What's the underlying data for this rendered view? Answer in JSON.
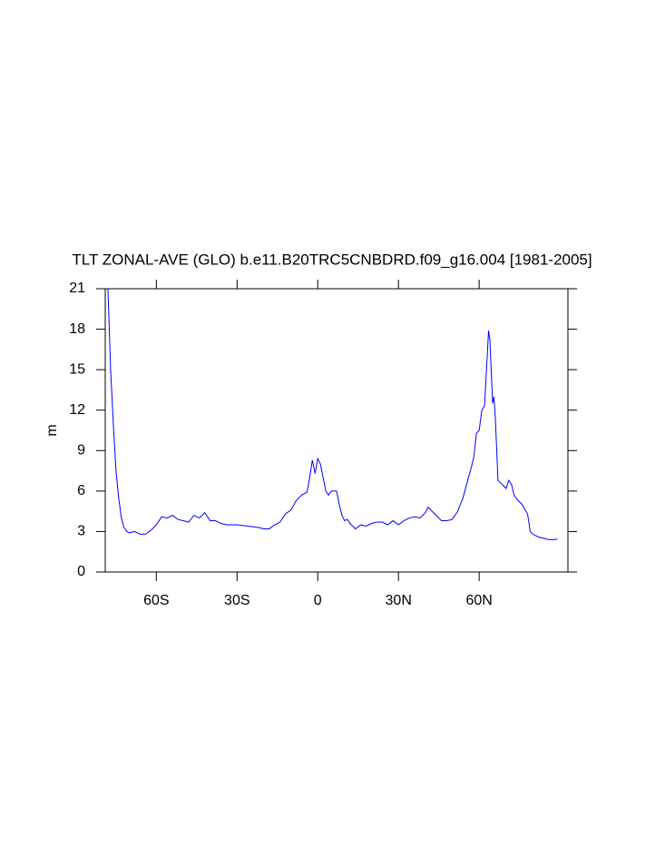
{
  "chart_data": {
    "type": "line",
    "title": "TLT ZONAL-AVE (GLO) b.e11.B20TRC5CNBDRD.f09_g16.004 [1981-2005]",
    "y_label": "m",
    "x": [
      -78,
      -77,
      -76,
      -75,
      -74,
      -73,
      -72,
      -71,
      -70,
      -68,
      -66,
      -64,
      -62,
      -60,
      -58,
      -56,
      -54,
      -52,
      -50,
      -48,
      -46,
      -44,
      -42,
      -40,
      -38,
      -36,
      -34,
      -30,
      -26,
      -22,
      -20,
      -18,
      -16,
      -14,
      -12,
      -10,
      -8,
      -6,
      -4,
      -3,
      -2,
      -1,
      0,
      1,
      2,
      3,
      4,
      5,
      7,
      8,
      9,
      10,
      11,
      12,
      14,
      16,
      18,
      20,
      22,
      24,
      26,
      28,
      30,
      32,
      34,
      36,
      38,
      40,
      41,
      42,
      44,
      46,
      48,
      50,
      52,
      54,
      56,
      57,
      58,
      59,
      60,
      61,
      62,
      63,
      63.5,
      64,
      65,
      65.5,
      66,
      67,
      68,
      69,
      70,
      71,
      72,
      73,
      74,
      76,
      78,
      79,
      80,
      82,
      84,
      86,
      88,
      89
    ],
    "series": [
      {
        "name": "TLT",
        "color": "#0000ff",
        "values": [
          21,
          15,
          11,
          7.5,
          5.5,
          4,
          3.3,
          3.0,
          2.9,
          3.0,
          2.8,
          2.8,
          3.1,
          3.5,
          4.1,
          4.0,
          4.2,
          3.9,
          3.8,
          3.7,
          4.2,
          4.0,
          4.4,
          3.8,
          3.8,
          3.6,
          3.5,
          3.5,
          3.4,
          3.3,
          3.2,
          3.2,
          3.5,
          3.7,
          4.3,
          4.6,
          5.3,
          5.7,
          5.9,
          7.0,
          8.3,
          7.3,
          8.4,
          8.0,
          7.0,
          6.0,
          5.7,
          6.0,
          6.0,
          5.0,
          4.2,
          3.8,
          3.9,
          3.6,
          3.2,
          3.5,
          3.4,
          3.6,
          3.7,
          3.7,
          3.5,
          3.8,
          3.5,
          3.8,
          4.0,
          4.1,
          4.0,
          4.4,
          4.8,
          4.6,
          4.2,
          3.8,
          3.8,
          3.9,
          4.5,
          5.5,
          7.0,
          7.7,
          8.5,
          10.3,
          10.5,
          12.0,
          12.3,
          16.0,
          17.9,
          17.2,
          12.5,
          13.0,
          11.5,
          6.8,
          6.6,
          6.4,
          6.2,
          6.8,
          6.5,
          5.7,
          5.4,
          5.0,
          4.3,
          3.0,
          2.8,
          2.6,
          2.5,
          2.4,
          2.4,
          2.45
        ]
      }
    ],
    "xlim": [
      -79,
      93
    ],
    "xticks": [
      {
        "value": -60,
        "label": "60S"
      },
      {
        "value": -30,
        "label": "30S"
      },
      0,
      {
        "value": 30,
        "label": "30N"
      },
      {
        "value": 60,
        "label": "60N"
      }
    ],
    "ylim": [
      0,
      21
    ],
    "yticks": [
      0,
      3,
      6,
      9,
      12,
      15,
      18,
      21
    ]
  }
}
